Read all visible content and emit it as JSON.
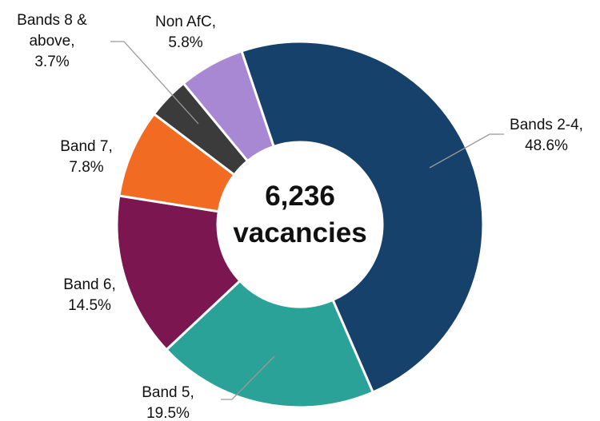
{
  "chart_data": {
    "type": "donut",
    "categories": [
      "Bands 2-4,",
      "Band 5,",
      "Band 6,",
      "Band 7,",
      "Bands 8 & above,",
      "Non AfC,"
    ],
    "values": [
      48.6,
      19.5,
      14.5,
      7.8,
      3.7,
      5.8
    ],
    "value_labels": [
      "48.6%",
      "19.5%",
      "14.5%",
      "7.8%",
      "3.7%",
      "5.8%"
    ],
    "colors": [
      "#16416a",
      "#2aa297",
      "#7b1650",
      "#f26b22",
      "#3b3b3b",
      "#a888d2"
    ],
    "center_text": [
      "6,236",
      "vacancies"
    ]
  }
}
